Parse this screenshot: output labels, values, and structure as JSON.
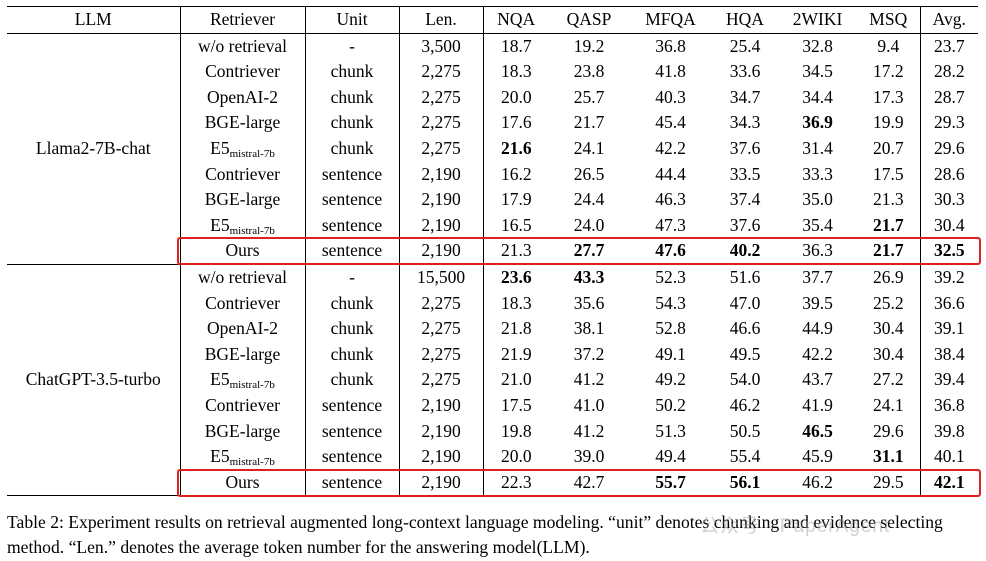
{
  "table": {
    "headers": [
      "LLM",
      "Retriever",
      "Unit",
      "Len.",
      "NQA",
      "QASP",
      "MFQA",
      "HQA",
      "2WIKI",
      "MSQ",
      "Avg."
    ],
    "groups": [
      {
        "llm": "Llama2-7B-chat",
        "rows": [
          {
            "retriever": "w/o retrieval",
            "unit": "-",
            "len": "3,500",
            "vals": [
              "18.7",
              "19.2",
              "36.8",
              "25.4",
              "32.8",
              "9.4",
              "23.7"
            ],
            "bold": []
          },
          {
            "retriever": "Contriever",
            "unit": "chunk",
            "len": "2,275",
            "vals": [
              "18.3",
              "23.8",
              "41.8",
              "33.6",
              "34.5",
              "17.2",
              "28.2"
            ],
            "bold": []
          },
          {
            "retriever": "OpenAI-2",
            "unit": "chunk",
            "len": "2,275",
            "vals": [
              "20.0",
              "25.7",
              "40.3",
              "34.7",
              "34.4",
              "17.3",
              "28.7"
            ],
            "bold": []
          },
          {
            "retriever": "BGE-large",
            "unit": "chunk",
            "len": "2,275",
            "vals": [
              "17.6",
              "21.7",
              "45.4",
              "34.3",
              "36.9",
              "19.9",
              "29.3"
            ],
            "bold": [
              4
            ]
          },
          {
            "retriever": "E5",
            "retriever_sub": "mistral-7b",
            "unit": "chunk",
            "len": "2,275",
            "vals": [
              "21.6",
              "24.1",
              "42.2",
              "37.6",
              "31.4",
              "20.7",
              "29.6"
            ],
            "bold": [
              0
            ]
          },
          {
            "retriever": "Contriever",
            "unit": "sentence",
            "len": "2,190",
            "vals": [
              "16.2",
              "26.5",
              "44.4",
              "33.5",
              "33.3",
              "17.5",
              "28.6"
            ],
            "bold": []
          },
          {
            "retriever": "BGE-large",
            "unit": "sentence",
            "len": "2,190",
            "vals": [
              "17.9",
              "24.4",
              "46.3",
              "37.4",
              "35.0",
              "21.3",
              "30.3"
            ],
            "bold": []
          },
          {
            "retriever": "E5",
            "retriever_sub": "mistral-7b",
            "unit": "sentence",
            "len": "2,190",
            "vals": [
              "16.5",
              "24.0",
              "47.3",
              "37.6",
              "35.4",
              "21.7",
              "30.4"
            ],
            "bold": [
              5
            ]
          },
          {
            "retriever": "Ours",
            "unit": "sentence",
            "len": "2,190",
            "vals": [
              "21.3",
              "27.7",
              "47.6",
              "40.2",
              "36.3",
              "21.7",
              "32.5"
            ],
            "bold": [
              1,
              2,
              3,
              5,
              6
            ],
            "highlight": true
          }
        ]
      },
      {
        "llm": "ChatGPT-3.5-turbo",
        "rows": [
          {
            "retriever": "w/o retrieval",
            "unit": "-",
            "len": "15,500",
            "vals": [
              "23.6",
              "43.3",
              "52.3",
              "51.6",
              "37.7",
              "26.9",
              "39.2"
            ],
            "bold": [
              0,
              1
            ]
          },
          {
            "retriever": "Contriever",
            "unit": "chunk",
            "len": "2,275",
            "vals": [
              "18.3",
              "35.6",
              "54.3",
              "47.0",
              "39.5",
              "25.2",
              "36.6"
            ],
            "bold": []
          },
          {
            "retriever": "OpenAI-2",
            "unit": "chunk",
            "len": "2,275",
            "vals": [
              "21.8",
              "38.1",
              "52.8",
              "46.6",
              "44.9",
              "30.4",
              "39.1"
            ],
            "bold": []
          },
          {
            "retriever": "BGE-large",
            "unit": "chunk",
            "len": "2,275",
            "vals": [
              "21.9",
              "37.2",
              "49.1",
              "49.5",
              "42.2",
              "30.4",
              "38.4"
            ],
            "bold": []
          },
          {
            "retriever": "E5",
            "retriever_sub": "mistral-7b",
            "unit": "chunk",
            "len": "2,275",
            "vals": [
              "21.0",
              "41.2",
              "49.2",
              "54.0",
              "43.7",
              "27.2",
              "39.4"
            ],
            "bold": []
          },
          {
            "retriever": "Contriever",
            "unit": "sentence",
            "len": "2,190",
            "vals": [
              "17.5",
              "41.0",
              "50.2",
              "46.2",
              "41.9",
              "24.1",
              "36.8"
            ],
            "bold": []
          },
          {
            "retriever": "BGE-large",
            "unit": "sentence",
            "len": "2,190",
            "vals": [
              "19.8",
              "41.2",
              "51.3",
              "50.5",
              "46.5",
              "29.6",
              "39.8"
            ],
            "bold": [
              4
            ]
          },
          {
            "retriever": "E5",
            "retriever_sub": "mistral-7b",
            "unit": "sentence",
            "len": "2,190",
            "vals": [
              "20.0",
              "39.0",
              "49.4",
              "55.4",
              "45.9",
              "31.1",
              "40.1"
            ],
            "bold": [
              5
            ]
          },
          {
            "retriever": "Ours",
            "unit": "sentence",
            "len": "2,190",
            "vals": [
              "22.3",
              "42.7",
              "55.7",
              "56.1",
              "46.2",
              "29.5",
              "42.1"
            ],
            "bold": [
              2,
              3,
              6
            ],
            "highlight": true
          }
        ]
      }
    ]
  },
  "caption": "Table 2: Experiment results on retrieval augmented long-context language modeling. “unit” denotes chunking and evidence selecting method. “Len.” denotes the average token number for the answering model(LLM).",
  "watermark": "公众号 · PaperAgent",
  "colors": {
    "highlight_border": "#e0201c",
    "rule": "#000000",
    "watermark": "#969696"
  }
}
